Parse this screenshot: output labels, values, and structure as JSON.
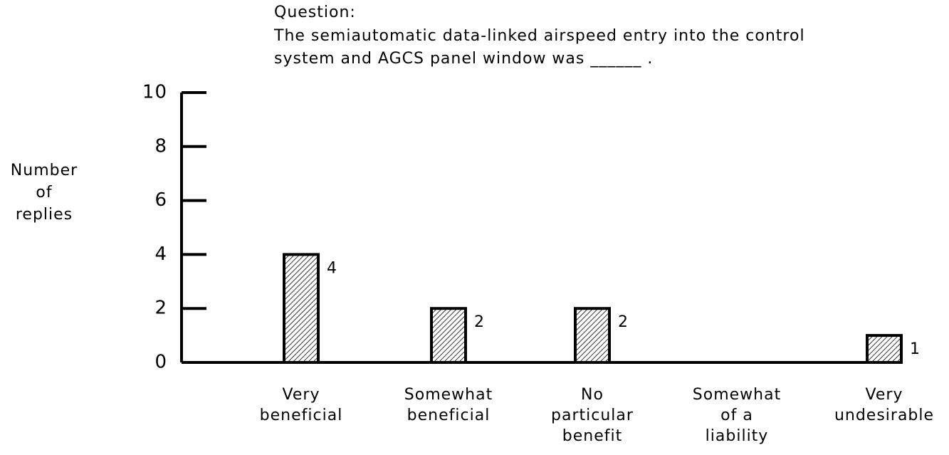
{
  "chart_data": {
    "type": "bar",
    "title": "Question:",
    "subtitle": [
      "The semiautomatic data-linked airspeed entry into the control",
      "system and AGCS panel window was ______ ."
    ],
    "ylabel": [
      "Number",
      "of",
      "replies"
    ],
    "categories": [
      [
        "Very",
        "beneficial"
      ],
      [
        "Somewhat",
        "beneficial"
      ],
      [
        "No",
        "particular",
        "benefit"
      ],
      [
        "Somewhat",
        "of a",
        "liability"
      ],
      [
        "Very",
        "undesirable"
      ]
    ],
    "values": [
      4,
      2,
      2,
      0,
      1
    ],
    "color": "#000000",
    "ylim": [
      0,
      10
    ],
    "yticks": [
      0,
      2,
      4,
      6,
      8,
      10
    ],
    "grid": false
  }
}
